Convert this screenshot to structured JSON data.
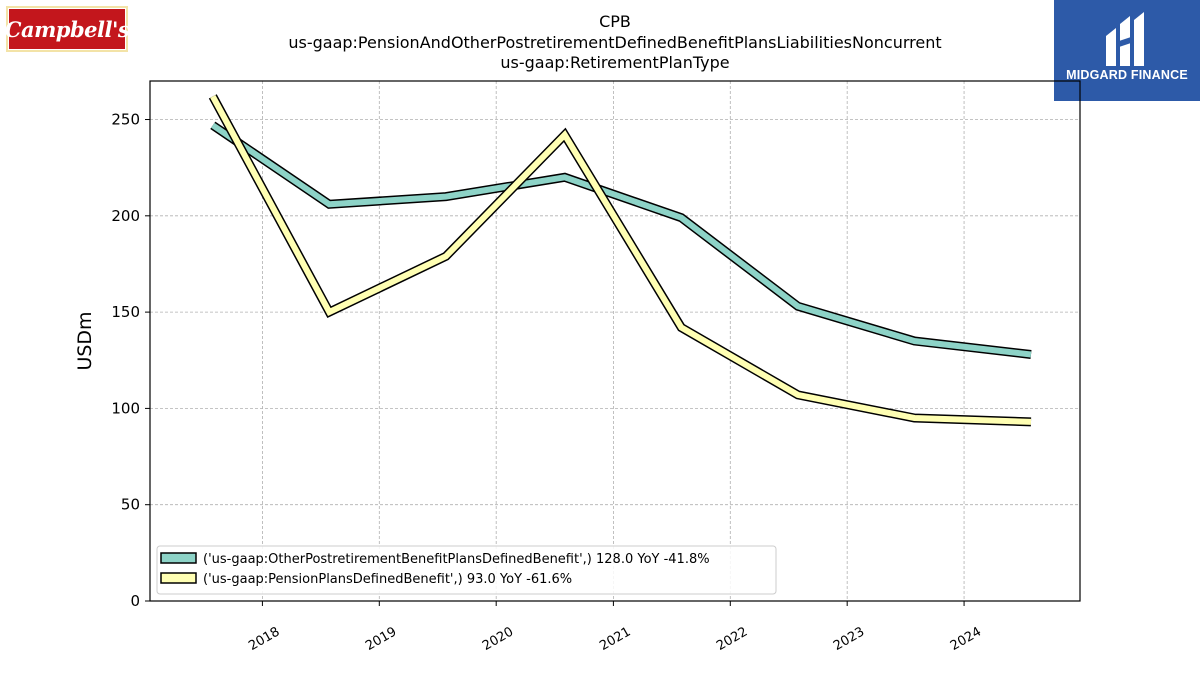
{
  "logos": {
    "left_brand": "Campbell's",
    "right_brand": "MIDGARD FINANCE"
  },
  "chart_data": {
    "type": "line",
    "title_lines": [
      "CPB",
      "us-gaap:PensionAndOtherPostretirementDefinedBenefitPlansLiabilitiesNoncurrent",
      "us-gaap:RetirementPlanType"
    ],
    "ylabel": "USDm",
    "xlabel": "",
    "ylim": [
      0,
      270
    ],
    "y_ticks": [
      0,
      50,
      100,
      150,
      200,
      250
    ],
    "x_ticks": [
      "2018",
      "2019",
      "2020",
      "2021",
      "2022",
      "2023",
      "2024"
    ],
    "x": [
      "2017-07-30",
      "2018-07-29",
      "2019-07-28",
      "2020-08-02",
      "2021-08-01",
      "2022-07-31",
      "2023-07-30",
      "2024-07-28"
    ],
    "grid": true,
    "legend_position": "lower-left",
    "series": [
      {
        "name": "('us-gaap:OtherPostretirementBenefitPlansDefinedBenefit',) 128.0 YoY -41.8%",
        "color": "#8dd3c7",
        "values": [
          247,
          206,
          210,
          220,
          199,
          153,
          135,
          128
        ]
      },
      {
        "name": "('us-gaap:PensionPlansDefinedBenefit',) 93.0 YoY -61.6%",
        "color": "#ffffb3",
        "values": [
          262,
          150,
          179,
          242,
          142,
          107,
          95,
          93
        ]
      }
    ]
  }
}
